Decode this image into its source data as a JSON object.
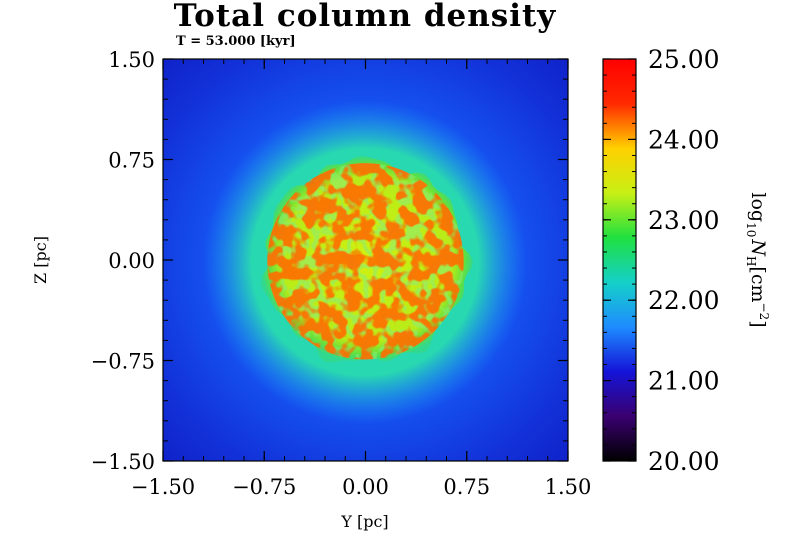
{
  "chart_data": {
    "type": "heatmap",
    "title": "Total column density",
    "subtitle": "T =   53.000 [kyr]",
    "xlabel": "Y [pc]",
    "ylabel": "Z [pc]",
    "xlim": [
      -1.5,
      1.5
    ],
    "ylim": [
      -1.5,
      1.5
    ],
    "x_ticks": [
      "−1.50",
      "−0.75",
      "0.00",
      "0.75",
      "1.50"
    ],
    "x_tick_values": [
      -1.5,
      -0.75,
      0.0,
      0.75,
      1.5
    ],
    "y_ticks": [
      "1.50",
      "0.75",
      "0.00",
      "−0.75",
      "−1.50"
    ],
    "y_tick_values": [
      1.5,
      0.75,
      0.0,
      -0.75,
      -1.5
    ],
    "colorbar": {
      "label_prefix": "log",
      "label_sub": "10",
      "label_var": "N",
      "label_var_sub": "H",
      "label_unit": "[cm",
      "label_exp": "−2",
      "label_close": "]",
      "range": [
        20.0,
        25.0
      ],
      "ticks": [
        "25.00",
        "24.00",
        "23.00",
        "22.00",
        "21.00",
        "20.00"
      ],
      "tick_values": [
        25.0,
        24.0,
        23.0,
        22.0,
        21.0,
        20.0
      ],
      "colormap": [
        "#000000",
        "#3a0070",
        "#1414d8",
        "#1e8cff",
        "#14d0c8",
        "#20e040",
        "#c8f014",
        "#ffd000",
        "#ff2a00",
        "#ff0000"
      ]
    },
    "structure": {
      "description_values": {
        "cloud_radius_pc": 0.75,
        "cloud_interior_log_N": 23.8,
        "filament_peak_log_N": 25.0,
        "cloud_edge_log_N": 22.6,
        "background_center_log_N": 21.6,
        "background_corner_log_N": 21.0
      }
    }
  }
}
